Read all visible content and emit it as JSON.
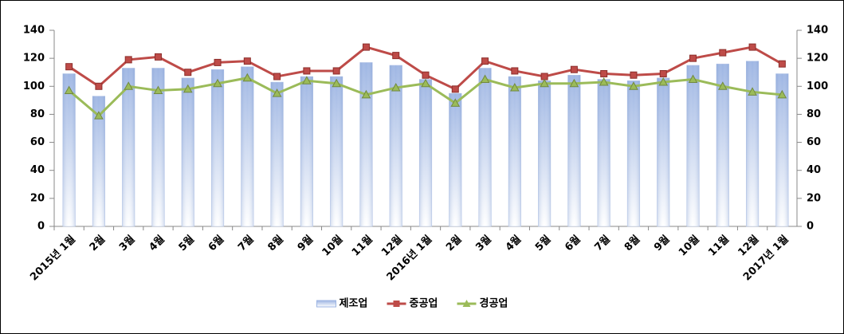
{
  "chart_data": {
    "type": "combo",
    "categories": [
      "2015년 1월",
      "2월",
      "3월",
      "4월",
      "5월",
      "6월",
      "7월",
      "8월",
      "9월",
      "10월",
      "11월",
      "12월",
      "2016년 1월",
      "2월",
      "3월",
      "4월",
      "5월",
      "6월",
      "7월",
      "8월",
      "9월",
      "10월",
      "11월",
      "12월",
      "2017년 1월"
    ],
    "series": [
      {
        "name": "제조업",
        "type": "bar",
        "color": "#9db5e3",
        "values": [
          109,
          93,
          113,
          113,
          106,
          112,
          114,
          103,
          107,
          107,
          117,
          115,
          105,
          95,
          113,
          107,
          104,
          108,
          105,
          104,
          106,
          115,
          116,
          118,
          109
        ]
      },
      {
        "name": "중공업",
        "type": "line",
        "marker": "square",
        "color": "#be4b48",
        "values": [
          114,
          100,
          119,
          121,
          110,
          117,
          118,
          107,
          111,
          111,
          128,
          122,
          108,
          98,
          118,
          111,
          107,
          112,
          109,
          108,
          109,
          120,
          124,
          128,
          116
        ]
      },
      {
        "name": "경공업",
        "type": "line",
        "marker": "triangle",
        "color": "#9bbb59",
        "values": [
          97,
          79,
          100,
          97,
          98,
          102,
          106,
          95,
          104,
          102,
          94,
          99,
          102,
          88,
          105,
          99,
          102,
          102,
          103,
          100,
          103,
          105,
          100,
          96,
          94
        ]
      }
    ],
    "ylim": [
      0,
      140
    ],
    "yticks": [
      0,
      20,
      40,
      60,
      80,
      100,
      120,
      140
    ],
    "y2lim": [
      0,
      140
    ],
    "y2ticks": [
      0,
      20,
      40,
      60,
      80,
      100,
      120,
      140
    ],
    "grid": false,
    "legend": "bottom"
  }
}
